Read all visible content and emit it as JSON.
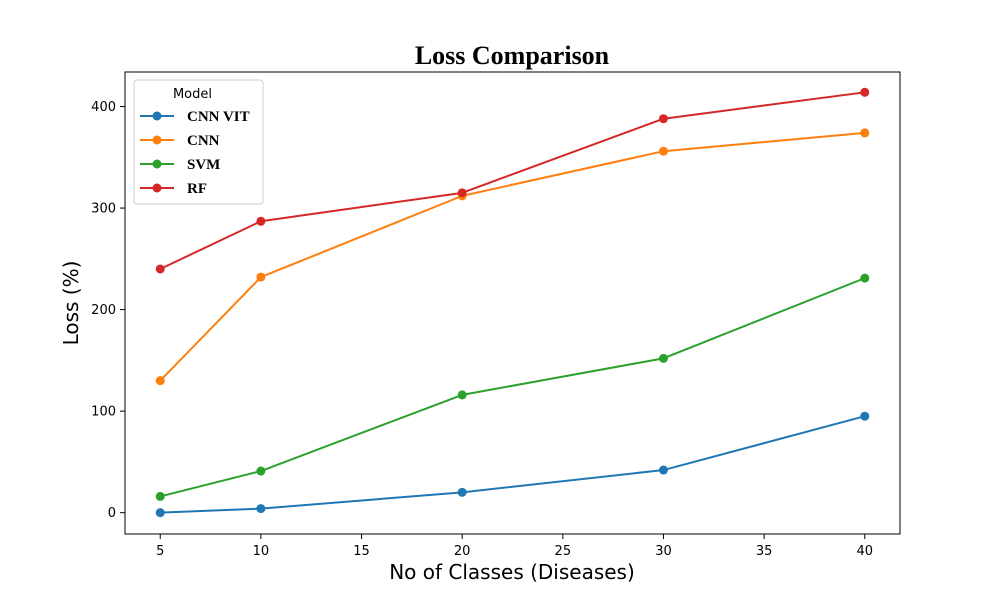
{
  "chart_data": {
    "type": "line",
    "title": "Loss Comparison",
    "xlabel": "No of Classes (Diseases)",
    "ylabel": "Loss (%)",
    "x": [
      5,
      10,
      20,
      30,
      40
    ],
    "xlim": [
      3.25,
      41.75
    ],
    "ylim": [
      -21,
      434
    ],
    "xticks": [
      5,
      10,
      15,
      20,
      25,
      30,
      35,
      40
    ],
    "yticks": [
      0,
      100,
      200,
      300,
      400
    ],
    "grid": false,
    "legend": {
      "title": "Model",
      "placement": "top-left"
    },
    "series": [
      {
        "name": "CNN VIT",
        "color": "#1f77b4",
        "values": [
          0,
          4,
          20,
          42,
          95
        ]
      },
      {
        "name": "CNN",
        "color": "#ff7f0e",
        "values": [
          130,
          232,
          312,
          356,
          374
        ]
      },
      {
        "name": "SVM",
        "color": "#2ca02c",
        "values": [
          16,
          41,
          116,
          152,
          231
        ]
      },
      {
        "name": "RF",
        "color": "#d62728",
        "values": [
          240,
          287,
          315,
          388,
          414
        ]
      }
    ]
  }
}
